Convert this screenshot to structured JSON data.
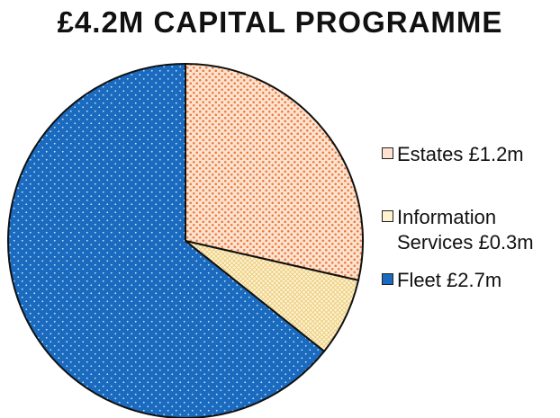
{
  "chart_data": {
    "type": "pie",
    "title": "£4.2M CAPITAL PROGRAMME",
    "slices": [
      {
        "label": "Estates £1.2m",
        "value": 1.2,
        "color": "#f4a07a",
        "pattern": "dots"
      },
      {
        "label": "Information Services £0.3m",
        "value": 0.3,
        "color": "#fbe7a6",
        "pattern": "crosshatch"
      },
      {
        "label": "Fleet £2.7m",
        "value": 2.7,
        "color": "#1a6bbf",
        "pattern": "dots"
      }
    ],
    "start_angle": "top (12 o'clock)",
    "direction": "clockwise",
    "legend_position": "right"
  }
}
